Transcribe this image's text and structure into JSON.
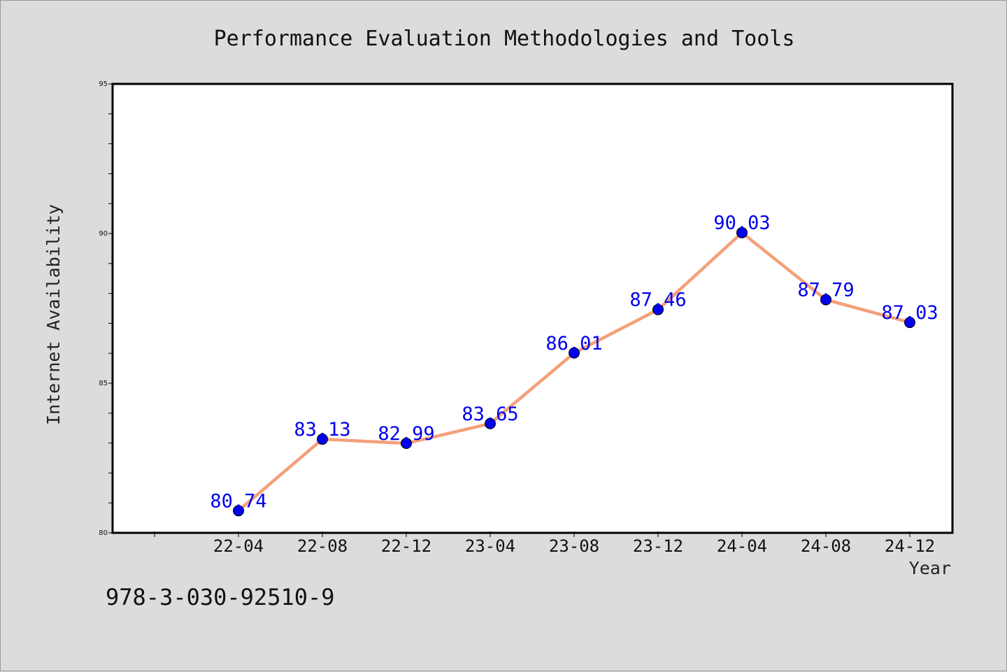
{
  "chart_data": {
    "type": "line",
    "title": "Performance Evaluation Methodologies and Tools",
    "xlabel": "Year",
    "ylabel": "Internet Availability",
    "categories": [
      "22-04",
      "22-08",
      "22-12",
      "23-04",
      "23-08",
      "23-12",
      "24-04",
      "24-08",
      "24-12"
    ],
    "series": [
      {
        "values": [
          80.74,
          83.13,
          82.99,
          83.65,
          86.01,
          87.46,
          90.03,
          87.79,
          87.03
        ],
        "labels": [
          "80.74",
          "83.13",
          "82.99",
          "83.65",
          "86.01",
          "87.46",
          "90.03",
          "87.79",
          "87.03"
        ],
        "line_color": "#f4a07a",
        "marker_color": "#0000ee"
      }
    ],
    "ylim": [
      80,
      95
    ],
    "yticks": [
      80,
      85,
      90,
      95
    ],
    "ytick_labels": [
      "80",
      "85",
      "90",
      "95"
    ],
    "grid": false,
    "legend": "none"
  },
  "footer": {
    "isbn": "978-3-030-92510-9"
  }
}
